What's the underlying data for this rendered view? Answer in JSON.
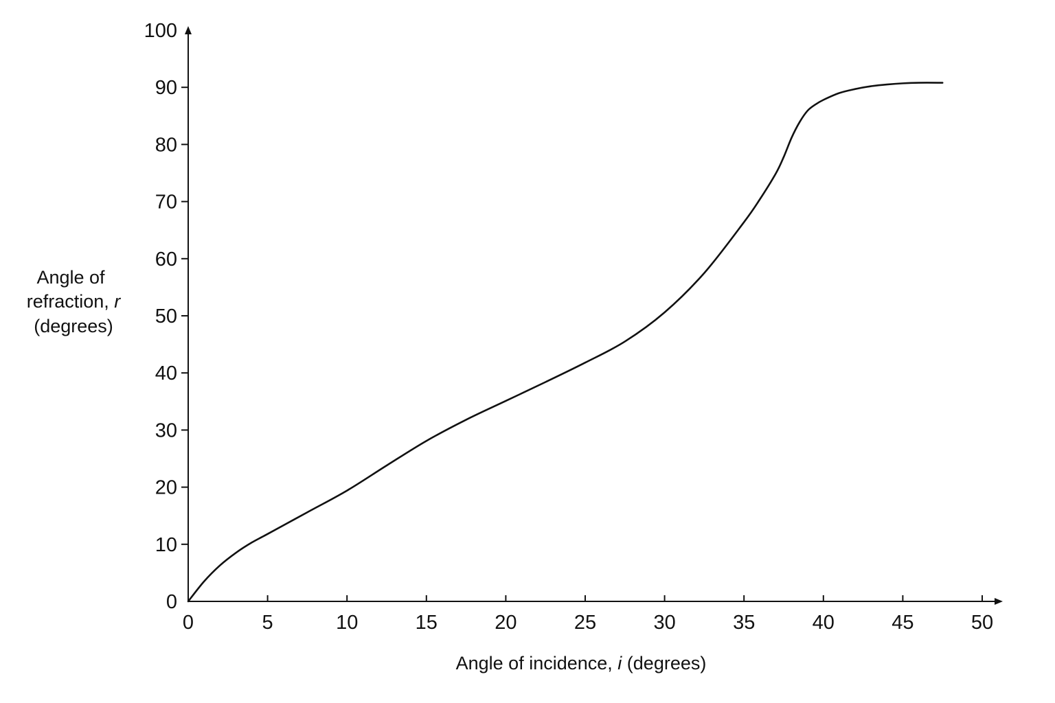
{
  "chart_data": {
    "type": "line",
    "title": "",
    "xlabel": "Angle of incidence, i (degrees)",
    "xlabel_parts": {
      "before": "Angle of incidence, ",
      "var": "i",
      "after": " (degrees)"
    },
    "ylabel_lines": [
      "Angle of",
      "refraction, r",
      "(degrees)"
    ],
    "ylabel_line2_parts": {
      "before": "refraction, ",
      "var": "r"
    },
    "xlim": [
      0,
      50
    ],
    "ylim": [
      0,
      100
    ],
    "x_ticks": [
      0,
      5,
      10,
      15,
      20,
      25,
      30,
      35,
      40,
      45,
      50
    ],
    "y_ticks": [
      0,
      10,
      20,
      30,
      40,
      50,
      60,
      70,
      80,
      90,
      100
    ],
    "grid": false,
    "legend": "none",
    "series": [
      {
        "color": "#111111",
        "x": [
          0,
          1,
          2,
          3,
          4,
          5,
          7.5,
          10,
          12.5,
          15,
          17.5,
          20,
          22.5,
          25,
          27.5,
          30,
          32.5,
          35,
          36,
          37,
          37.5,
          38,
          38.5,
          39,
          39.5,
          40,
          41,
          42,
          43,
          44,
          45,
          46,
          47.5
        ],
        "y": [
          0,
          3.5,
          6.3,
          8.5,
          10.3,
          11.8,
          15.6,
          19.4,
          23.8,
          28.1,
          31.8,
          35.1,
          38.4,
          41.8,
          45.5,
          50.6,
          57.5,
          66.4,
          70.4,
          74.9,
          77.8,
          81.2,
          83.9,
          85.9,
          87.0,
          87.8,
          89.0,
          89.7,
          90.2,
          90.5,
          90.7,
          90.8,
          90.8
        ]
      }
    ]
  }
}
